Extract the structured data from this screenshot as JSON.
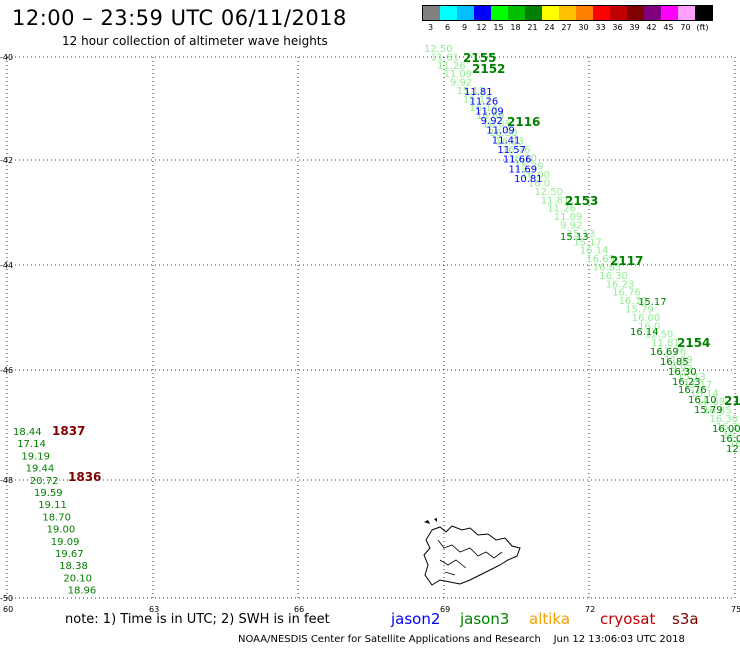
{
  "header": {
    "title": "12:00  –  23:59  UTC  06/11/2018",
    "subtitle": "12 hour collection of altimeter wave heights"
  },
  "scale": {
    "colors": [
      "#808080",
      "#00ffff",
      "#00bfff",
      "#0000ff",
      "#00ff00",
      "#00c000",
      "#008000",
      "#ffff00",
      "#ffc000",
      "#ff8000",
      "#ff0000",
      "#c00000",
      "#800000",
      "#800080",
      "#ff00ff",
      "#ffa0ff",
      "#000000"
    ],
    "labels": [
      "3",
      "6",
      "9",
      "12",
      "15",
      "18",
      "21",
      "24",
      "27",
      "30",
      "33",
      "36",
      "39",
      "42",
      "45",
      "70",
      "(ft)"
    ]
  },
  "map": {
    "lat_labels": [
      "-40",
      "-42",
      "-44",
      "-46",
      "-48",
      "-50"
    ],
    "lon_labels": [
      "60",
      "63",
      "66",
      "69",
      "72",
      "75"
    ],
    "grid": true,
    "land_label_color": "#000000"
  },
  "tracks": [
    {
      "satellite": "jason3",
      "color": "#008000",
      "light_color": "#90ee90",
      "times": [
        "2155",
        "2152",
        "2116",
        "2153",
        "2117",
        "2154",
        "21"
      ],
      "heights": [
        "12.50",
        "11.81",
        "11.26",
        "11.09",
        "9.92",
        "15.13",
        "15.17",
        "16.14",
        "16.69",
        "16.85",
        "16.30",
        "16.23",
        "16.76",
        "16.10",
        "15.79",
        "16.00",
        "16.0"
      ],
      "left_heights": [
        "18.44",
        "17.14",
        "19.19",
        "19.44",
        "20.72",
        "19.59",
        "19.11",
        "18.70",
        "19.00",
        "19.09",
        "19.67",
        "18.38",
        "20.10",
        "18.96"
      ]
    },
    {
      "satellite": "jason2",
      "color": "#0000ff",
      "heights": [
        "11.81",
        "11.26",
        "11.09",
        "9.92",
        "11.09",
        "11.41",
        "11.57",
        "11.66",
        "11.69",
        "10.81"
      ]
    },
    {
      "satellite": "cryosat",
      "color": "#800000",
      "times": [
        "1837",
        "1836"
      ]
    }
  ],
  "legend": {
    "note": "note:  1) Time is in UTC;  2) SWH is in feet",
    "satellites": [
      "jason2",
      "jason3",
      "altika",
      "cryosat",
      "s3a"
    ]
  },
  "footer": "NOAA/NESDIS Center for Satellite Applications and Research    Jun 12 13:06:03 UTC 2018"
}
